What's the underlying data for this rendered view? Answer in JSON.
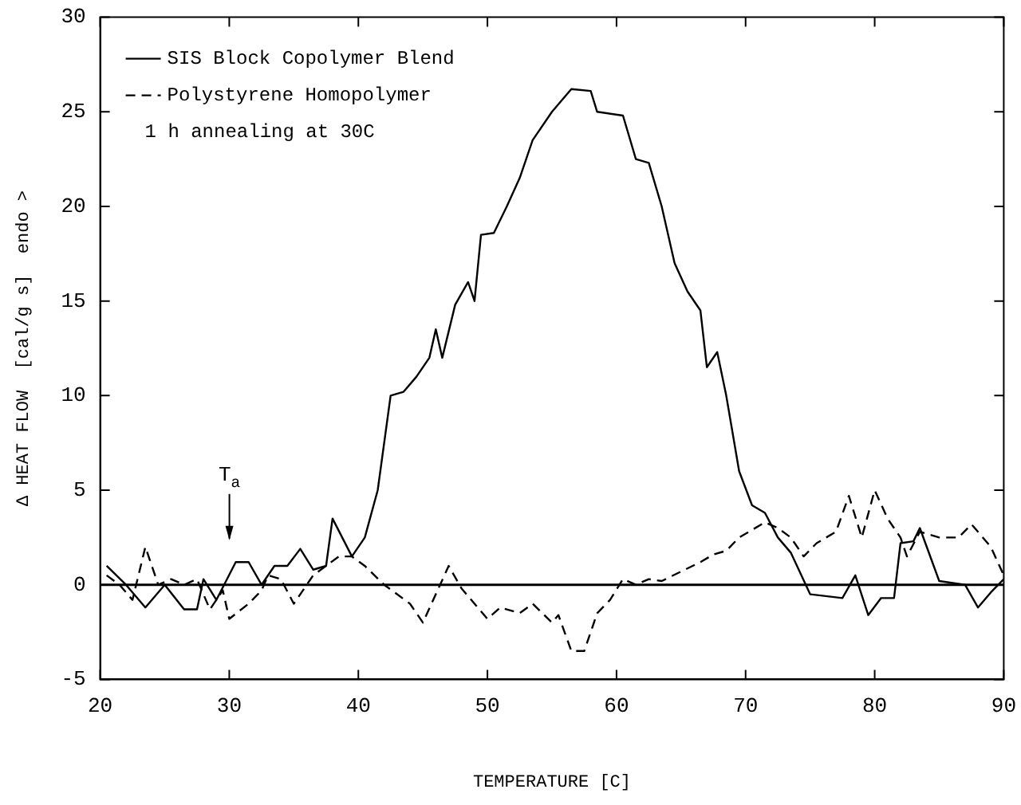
{
  "chart_data": {
    "type": "line",
    "xlabel": "TEMPERATURE [C]",
    "ylabel": "Δ HEAT FLOW  [cal/g s]  endo >",
    "xlim": [
      20,
      90
    ],
    "xticks": [
      20,
      30,
      40,
      50,
      60,
      70,
      80,
      90
    ],
    "ylim": [
      -5,
      30
    ],
    "yticks": [
      -5,
      0,
      5,
      10,
      15,
      20,
      25,
      30
    ],
    "grid": false,
    "legend": "top left",
    "marker": "none",
    "series": [
      {
        "name": "SIS Block Copolymer Blend",
        "color": "#000000",
        "line_style": "solid",
        "x": [
          20.5,
          22,
          23.5,
          25,
          26.5,
          27.5,
          28,
          29,
          30.5,
          31.5,
          32.5,
          33.5,
          34.5,
          35.5,
          36.5,
          37.5,
          38,
          39.5,
          40.5,
          41.5,
          42.5,
          43.5,
          44.5,
          45.5,
          46,
          46.5,
          47.5,
          48.5,
          49,
          49.5,
          50.5,
          51.5,
          52.5,
          53.5,
          55,
          56.5,
          58,
          58.5,
          60.5,
          61.5,
          62.5,
          63.5,
          64.5,
          65.5,
          66.5,
          67,
          67.8,
          68.5,
          69.5,
          70.5,
          71.5,
          72.5,
          73.5,
          75,
          77.5,
          78.5,
          79.5,
          80.5,
          81.5,
          82,
          83,
          83.5,
          85,
          87,
          88,
          89,
          90
        ],
        "values": [
          1,
          0,
          -1.2,
          0,
          -1.3,
          -1.3,
          0.3,
          -0.8,
          1.2,
          1.2,
          0,
          1,
          1,
          1.9,
          0.8,
          1,
          3.5,
          1.5,
          2.5,
          5,
          10,
          10.2,
          11,
          12,
          13.5,
          12,
          14.8,
          16,
          15,
          18.5,
          18.6,
          20,
          21.5,
          23.5,
          25,
          26.2,
          26.1,
          25,
          24.8,
          22.5,
          22.3,
          20,
          17,
          15.5,
          14.5,
          11.5,
          12.3,
          10,
          6,
          4.2,
          3.8,
          2.5,
          1.7,
          -0.5,
          -0.7,
          0.5,
          -1.6,
          -0.7,
          -0.7,
          2.2,
          2.3,
          3,
          0.2,
          0,
          -1.2,
          -0.4,
          0.3
        ]
      },
      {
        "name": "Polystyrene Homopolymer",
        "color": "#000000",
        "line_style": "dashed",
        "x": [
          20.5,
          21.5,
          22.5,
          23.5,
          24.5,
          25.5,
          26.5,
          27.5,
          28.5,
          29.5,
          30,
          31.5,
          32.5,
          33,
          34,
          35,
          35.5,
          36.5,
          37.5,
          38.5,
          39.5,
          40.5,
          42,
          43,
          44,
          45,
          46,
          47,
          48,
          49,
          50,
          51,
          52.5,
          53.5,
          55,
          55.5,
          56.5,
          57.5,
          58.5,
          59.5,
          60.5,
          61.5,
          62.5,
          63.5,
          65,
          66.5,
          67.5,
          68.5,
          69.5,
          70.5,
          71.5,
          72.5,
          73.5,
          74.5,
          75.5,
          77,
          78,
          79,
          80,
          81,
          82,
          82.5,
          83.5,
          85,
          86.5,
          87.5,
          89,
          90
        ],
        "values": [
          0.5,
          0,
          -0.8,
          2,
          0,
          0.3,
          0,
          0.3,
          -1.3,
          -0.3,
          -1.8,
          -1,
          -0.3,
          0.5,
          0.3,
          -1,
          -0.5,
          0.5,
          1,
          1.5,
          1.5,
          1,
          0,
          -0.5,
          -1,
          -2,
          -0.5,
          1,
          -0.2,
          -1,
          -1.8,
          -1.2,
          -1.5,
          -1,
          -2,
          -1.6,
          -3.5,
          -3.5,
          -1.5,
          -0.8,
          0.3,
          0,
          0.3,
          0.2,
          0.7,
          1.2,
          1.6,
          1.8,
          2.5,
          2.9,
          3.3,
          3,
          2.5,
          1.5,
          2.2,
          2.8,
          4.7,
          2.5,
          5,
          3.5,
          2.5,
          1.5,
          2.8,
          2.5,
          2.5,
          3.2,
          2,
          0.5
        ]
      }
    ],
    "ref_lines": [
      {
        "axis": "y",
        "value": 0,
        "color": "#000000",
        "line_style": "solid"
      }
    ],
    "annotations": [
      "T$_{a}$",
      "1 h annealing at 30C"
    ]
  }
}
